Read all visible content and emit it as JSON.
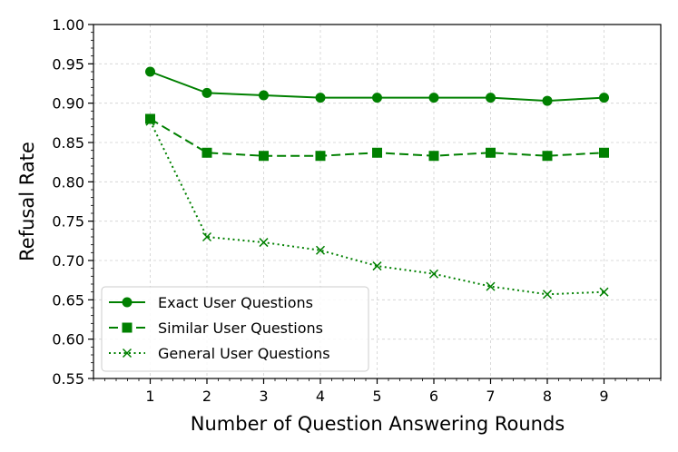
{
  "chart_data": {
    "type": "line",
    "title": "",
    "xlabel": "Number of Question Answering Rounds",
    "ylabel": "Refusal Rate",
    "x": [
      1,
      2,
      3,
      4,
      5,
      6,
      7,
      8,
      9
    ],
    "xlim": [
      0,
      10
    ],
    "ylim": [
      0.55,
      1.0
    ],
    "yticks": [
      "0.55",
      "0.60",
      "0.65",
      "0.70",
      "0.75",
      "0.80",
      "0.85",
      "0.90",
      "0.95",
      "1.00"
    ],
    "xticks": [
      "1",
      "2",
      "3",
      "4",
      "5",
      "6",
      "7",
      "8",
      "9"
    ],
    "grid": true,
    "legend_position": "lower-left",
    "color": "#008000",
    "series": [
      {
        "name": "Exact User Questions",
        "marker": "circle",
        "linestyle": "solid",
        "values": [
          0.94,
          0.913,
          0.91,
          0.907,
          0.907,
          0.907,
          0.907,
          0.903,
          0.907
        ]
      },
      {
        "name": "Similar User Questions",
        "marker": "square",
        "linestyle": "dashed",
        "values": [
          0.88,
          0.837,
          0.833,
          0.833,
          0.837,
          0.833,
          0.837,
          0.833,
          0.837
        ]
      },
      {
        "name": "General User Questions",
        "marker": "x",
        "linestyle": "dotted",
        "values": [
          0.877,
          0.73,
          0.723,
          0.713,
          0.693,
          0.683,
          0.667,
          0.657,
          0.66
        ]
      }
    ]
  }
}
